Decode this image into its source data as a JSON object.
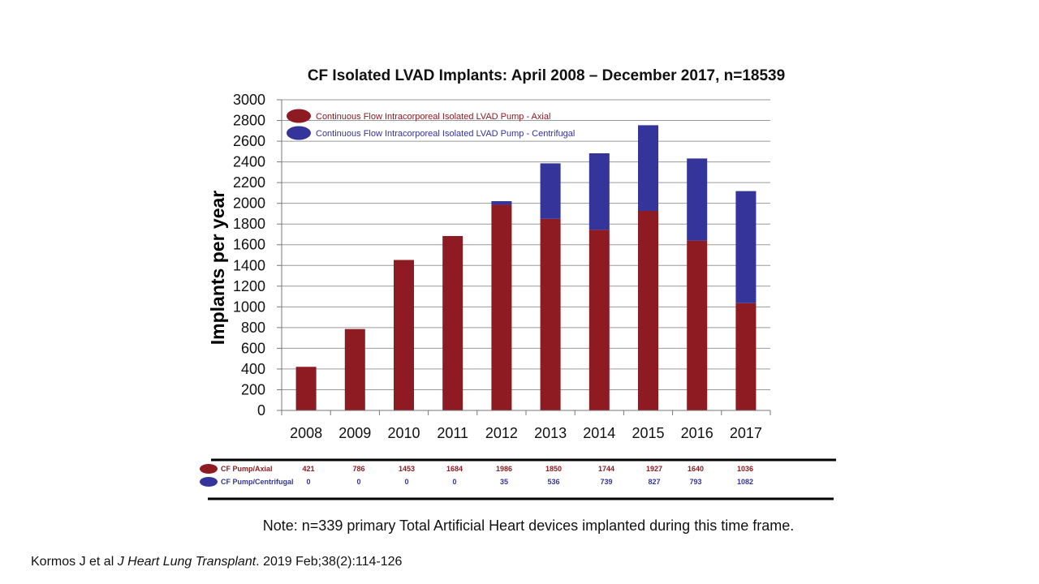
{
  "colors": {
    "axial": "#8e1b22",
    "centrifugal": "#34349a",
    "grid": "#9a9a9a"
  },
  "chart_data": {
    "type": "bar",
    "stacked": true,
    "title": "CF Isolated LVAD Implants:  April 2008 – December 2017, n=18539",
    "xlabel": "",
    "ylabel": "Implants per year",
    "ylim": [
      0,
      3000
    ],
    "yticks": [
      0,
      200,
      400,
      600,
      800,
      1000,
      1200,
      1400,
      1600,
      1800,
      2000,
      2200,
      2400,
      2600,
      2800,
      3000
    ],
    "categories": [
      "2008",
      "2009",
      "2010",
      "2011",
      "2012",
      "2013",
      "2014",
      "2015",
      "2016",
      "2017"
    ],
    "grid": true,
    "legend_position": "top-left",
    "series": [
      {
        "name": "Continuous Flow Intracorporeal Isolated LVAD Pump - Axial",
        "values": [
          421,
          786,
          1453,
          1684,
          1986,
          1850,
          1744,
          1927,
          1640,
          1036
        ]
      },
      {
        "name": "Continuous Flow Intracorporeal Isolated LVAD Pump - Centrifugal",
        "values": [
          0,
          0,
          0,
          0,
          35,
          536,
          739,
          827,
          793,
          1082
        ]
      }
    ],
    "table": {
      "rows": [
        {
          "label": "CF Pump/Axial",
          "values": [
            "421",
            "786",
            "1453",
            "1684",
            "1986",
            "1850",
            "1744",
            "1927",
            "1640",
            "1036"
          ]
        },
        {
          "label": "CF Pump/Centrifugal",
          "values": [
            "0",
            "0",
            "0",
            "0",
            "35",
            "536",
            "739",
            "827",
            "793",
            "1082"
          ]
        }
      ]
    }
  },
  "note": "Note:  n=339 primary Total Artificial Heart devices implanted during this time frame.",
  "citation": {
    "authors": "Kormos J et al ",
    "journal": "J Heart Lung Transplant",
    "details": ". 2019 Feb;38(2):114-126"
  }
}
